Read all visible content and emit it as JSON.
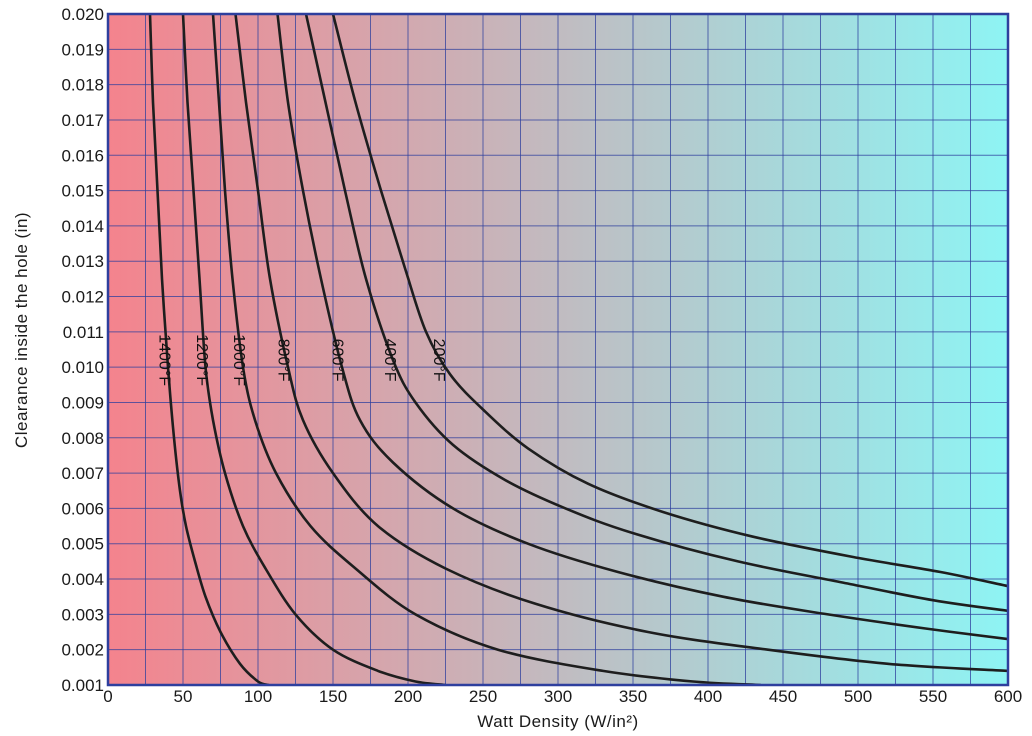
{
  "chart_data": {
    "type": "line",
    "xlabel": "Watt Density (W/in²)",
    "ylabel": "Clearance inside the hole (in)",
    "xlim": [
      0,
      600
    ],
    "ylim": [
      0.001,
      0.02
    ],
    "x_ticks": [
      0,
      50,
      100,
      150,
      200,
      250,
      300,
      350,
      400,
      450,
      500,
      550,
      600
    ],
    "x_tick_labels": [
      "0",
      "50",
      "100",
      "150",
      "200",
      "250",
      "300",
      "350",
      "400",
      "450",
      "500",
      "550",
      "600"
    ],
    "y_ticks": [
      0.001,
      0.002,
      0.003,
      0.004,
      0.005,
      0.006,
      0.007,
      0.008,
      0.009,
      0.01,
      0.011,
      0.012,
      0.013,
      0.014,
      0.015,
      0.016,
      0.017,
      0.018,
      0.019,
      0.02
    ],
    "y_tick_labels": [
      "0.001",
      "0.002",
      "0.003",
      "0.004",
      "0.005",
      "0.006",
      "0.007",
      "0.008",
      "0.009",
      "0.010",
      "0.011",
      "0.012",
      "0.013",
      "0.014",
      "0.015",
      "0.016",
      "0.017",
      "0.018",
      "0.019",
      "0.020"
    ],
    "grid": true,
    "background_gradient": [
      "#f4838d",
      "#8ef4f4"
    ],
    "curve_color": "#1e1e1e",
    "frame_color": "#2e3f9e",
    "grid_color": "#2e3f9e",
    "series": [
      {
        "name": "1400°F",
        "points": [
          [
            28,
            0.02
          ],
          [
            30,
            0.0175
          ],
          [
            33,
            0.015
          ],
          [
            36,
            0.0125
          ],
          [
            40,
            0.01
          ],
          [
            44,
            0.008
          ],
          [
            48,
            0.0065
          ],
          [
            52,
            0.0055
          ],
          [
            58,
            0.0045
          ],
          [
            65,
            0.0035
          ],
          [
            75,
            0.0025
          ],
          [
            88,
            0.0016
          ],
          [
            100,
            0.0011
          ],
          [
            107,
            0.001
          ]
        ]
      },
      {
        "name": "1200°F",
        "points": [
          [
            50,
            0.02
          ],
          [
            53,
            0.0175
          ],
          [
            57,
            0.015
          ],
          [
            61,
            0.0125
          ],
          [
            65,
            0.01
          ],
          [
            70,
            0.0085
          ],
          [
            78,
            0.007
          ],
          [
            90,
            0.0055
          ],
          [
            105,
            0.0043
          ],
          [
            125,
            0.003
          ],
          [
            150,
            0.002
          ],
          [
            180,
            0.0014
          ],
          [
            205,
            0.0011
          ],
          [
            225,
            0.001
          ]
        ]
      },
      {
        "name": "1000°F",
        "points": [
          [
            70,
            0.02
          ],
          [
            74,
            0.0175
          ],
          [
            78,
            0.015
          ],
          [
            83,
            0.0125
          ],
          [
            90,
            0.01
          ],
          [
            98,
            0.0085
          ],
          [
            112,
            0.007
          ],
          [
            135,
            0.0055
          ],
          [
            165,
            0.0043
          ],
          [
            205,
            0.003
          ],
          [
            260,
            0.002
          ],
          [
            330,
            0.0014
          ],
          [
            390,
            0.0011
          ],
          [
            435,
            0.001
          ]
        ]
      },
      {
        "name": "800°F",
        "points": [
          [
            85,
            0.02
          ],
          [
            92,
            0.0175
          ],
          [
            100,
            0.015
          ],
          [
            108,
            0.0125
          ],
          [
            120,
            0.01
          ],
          [
            130,
            0.0085
          ],
          [
            150,
            0.007
          ],
          [
            180,
            0.0055
          ],
          [
            225,
            0.0043
          ],
          [
            285,
            0.0033
          ],
          [
            360,
            0.0025
          ],
          [
            440,
            0.002
          ],
          [
            520,
            0.0016
          ],
          [
            600,
            0.0014
          ]
        ]
      },
      {
        "name": "600°F",
        "points": [
          [
            113,
            0.02
          ],
          [
            120,
            0.0175
          ],
          [
            130,
            0.015
          ],
          [
            142,
            0.0125
          ],
          [
            156,
            0.01
          ],
          [
            168,
            0.0085
          ],
          [
            190,
            0.0073
          ],
          [
            230,
            0.006
          ],
          [
            280,
            0.005
          ],
          [
            340,
            0.0042
          ],
          [
            410,
            0.0035
          ],
          [
            480,
            0.003
          ],
          [
            545,
            0.0026
          ],
          [
            600,
            0.0023
          ]
        ]
      },
      {
        "name": "400°F",
        "points": [
          [
            132,
            0.02
          ],
          [
            145,
            0.0175
          ],
          [
            158,
            0.015
          ],
          [
            172,
            0.0125
          ],
          [
            190,
            0.0102
          ],
          [
            205,
            0.009
          ],
          [
            230,
            0.0078
          ],
          [
            265,
            0.0068
          ],
          [
            305,
            0.006
          ],
          [
            350,
            0.0053
          ],
          [
            420,
            0.0045
          ],
          [
            490,
            0.0039
          ],
          [
            550,
            0.0034
          ],
          [
            600,
            0.0031
          ]
        ]
      },
      {
        "name": "200°F",
        "points": [
          [
            150,
            0.02
          ],
          [
            165,
            0.0175
          ],
          [
            182,
            0.015
          ],
          [
            198,
            0.0128
          ],
          [
            212,
            0.011
          ],
          [
            228,
            0.0098
          ],
          [
            250,
            0.0088
          ],
          [
            280,
            0.0077
          ],
          [
            320,
            0.0067
          ],
          [
            370,
            0.0059
          ],
          [
            430,
            0.0052
          ],
          [
            500,
            0.0046
          ],
          [
            555,
            0.0042
          ],
          [
            600,
            0.0038
          ]
        ]
      }
    ]
  }
}
